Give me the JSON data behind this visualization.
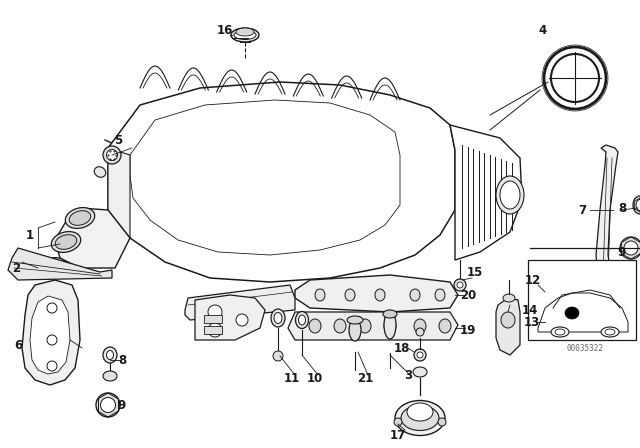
{
  "bg_color": "#ffffff",
  "line_color": "#1a1a1a",
  "fig_width": 6.4,
  "fig_height": 4.48,
  "dpi": 100,
  "watermark": "00035322",
  "label_fontsize": 8.5
}
